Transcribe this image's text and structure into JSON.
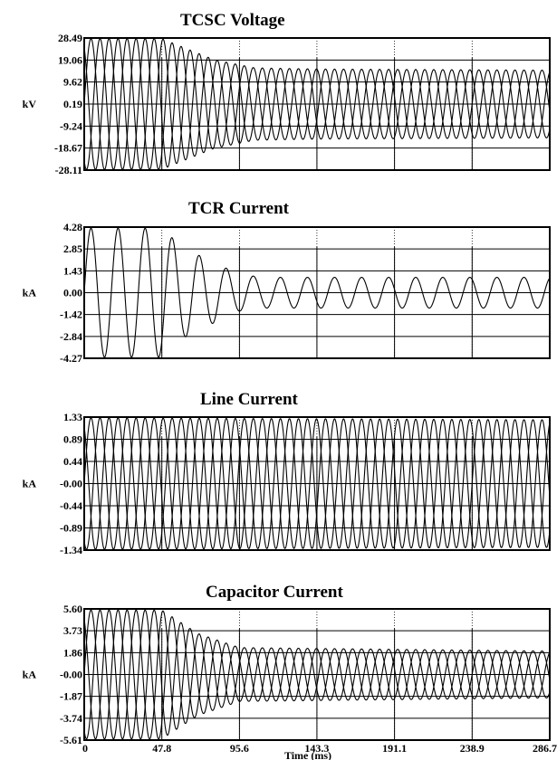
{
  "chart_data": [
    {
      "type": "line",
      "title": "TCSC Voltage",
      "ylabel": "kV",
      "yticks": [
        "28.49",
        "19.06",
        "9.62",
        "0.19",
        "-9.24",
        "-18.67",
        "-28.11"
      ],
      "ylim": [
        -28.11,
        28.49
      ],
      "xlim": [
        0,
        286.7
      ],
      "series": [
        {
          "phase_deg": 0,
          "envelope": [
            [
              0,
              28.0
            ],
            [
              47.8,
              28.0
            ],
            [
              80,
              19.0
            ],
            [
              105,
              15.5
            ],
            [
              143.3,
              15.0
            ],
            [
              286.7,
              14.5
            ]
          ]
        },
        {
          "phase_deg": 120,
          "envelope": [
            [
              0,
              28.0
            ],
            [
              47.8,
              28.0
            ],
            [
              80,
              19.0
            ],
            [
              105,
              15.5
            ],
            [
              143.3,
              15.0
            ],
            [
              286.7,
              14.5
            ]
          ]
        },
        {
          "phase_deg": 240,
          "envelope": [
            [
              0,
              28.0
            ],
            [
              47.8,
              28.0
            ],
            [
              80,
              19.0
            ],
            [
              105,
              15.5
            ],
            [
              143.3,
              15.0
            ],
            [
              286.7,
              14.5
            ]
          ]
        }
      ]
    },
    {
      "type": "line",
      "title": "TCR Current",
      "ylabel": "kA",
      "yticks": [
        "4.28",
        "2.85",
        "1.43",
        "0.00",
        "-1.42",
        "-2.84",
        "-4.27"
      ],
      "ylim": [
        -4.27,
        4.28
      ],
      "xlim": [
        0,
        286.7
      ],
      "series": [
        {
          "phase_deg": 0,
          "envelope": [
            [
              0,
              4.2
            ],
            [
              47.8,
              4.2
            ],
            [
              60,
              3.0
            ],
            [
              75,
              2.2
            ],
            [
              95.6,
              1.2
            ],
            [
              110,
              1.0
            ],
            [
              286.7,
              1.0
            ]
          ]
        }
      ]
    },
    {
      "type": "line",
      "title": "Line Current",
      "ylabel": "kA",
      "yticks": [
        "1.33",
        "0.89",
        "0.44",
        "-0.00",
        "-0.44",
        "-0.89",
        "-1.34"
      ],
      "ylim": [
        -1.34,
        1.33
      ],
      "xlim": [
        0,
        286.7
      ],
      "series": [
        {
          "phase_deg": 0,
          "envelope": [
            [
              0,
              1.32
            ],
            [
              286.7,
              1.28
            ]
          ]
        },
        {
          "phase_deg": 120,
          "envelope": [
            [
              0,
              1.32
            ],
            [
              286.7,
              1.28
            ]
          ]
        },
        {
          "phase_deg": 240,
          "envelope": [
            [
              0,
              1.32
            ],
            [
              286.7,
              1.28
            ]
          ]
        }
      ]
    },
    {
      "type": "line",
      "title": "Capacitor Current",
      "ylabel": "kA",
      "yticks": [
        "5.60",
        "3.73",
        "1.86",
        "-0.00",
        "-1.87",
        "-3.74",
        "-5.61"
      ],
      "ylim": [
        -5.61,
        5.6
      ],
      "xlim": [
        0,
        286.7
      ],
      "xticks": [
        "0",
        "47.8",
        "95.6",
        "143.3",
        "191.1",
        "238.9",
        "286.7"
      ],
      "xlabel": "Time (ms)",
      "series": [
        {
          "phase_deg": 0,
          "envelope": [
            [
              0,
              5.5
            ],
            [
              47.8,
              5.5
            ],
            [
              70,
              3.5
            ],
            [
              95.6,
              2.3
            ],
            [
              286.7,
              2.0
            ]
          ]
        },
        {
          "phase_deg": 120,
          "envelope": [
            [
              0,
              5.5
            ],
            [
              47.8,
              5.5
            ],
            [
              70,
              3.5
            ],
            [
              95.6,
              2.3
            ],
            [
              286.7,
              2.0
            ]
          ]
        },
        {
          "phase_deg": 240,
          "envelope": [
            [
              0,
              5.5
            ],
            [
              47.8,
              5.5
            ],
            [
              70,
              3.5
            ],
            [
              95.6,
              2.3
            ],
            [
              286.7,
              2.0
            ]
          ]
        }
      ]
    }
  ],
  "signal_frequency_hz": 60,
  "grid": true
}
